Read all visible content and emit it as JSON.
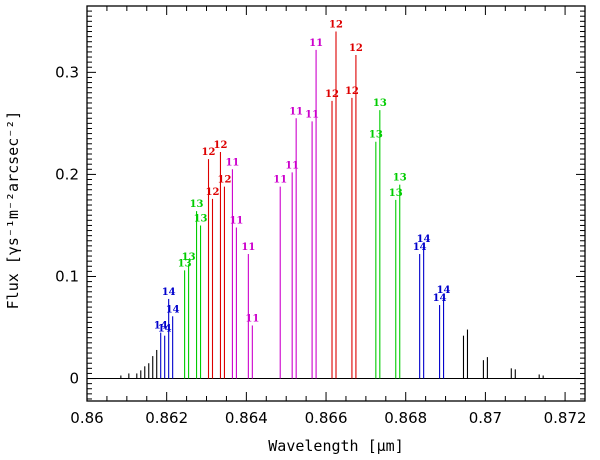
{
  "chart_data": {
    "type": "stem",
    "xlabel": "Wavelength [μm]",
    "ylabel": "Flux [γs⁻¹m⁻²arcsec⁻²]",
    "xlim": [
      0.86,
      0.8725
    ],
    "ylim": [
      -0.022,
      0.365
    ],
    "xticks": [
      0.86,
      0.862,
      0.864,
      0.866,
      0.868,
      0.87,
      0.872
    ],
    "xtick_labels": [
      "0.86",
      "0.862",
      "0.864",
      "0.866",
      "0.868",
      "0.87",
      "0.872"
    ],
    "yticks": [
      0,
      0.1,
      0.2,
      0.3
    ],
    "ytick_labels": [
      "0",
      "0.1",
      "0.2",
      "0.3"
    ],
    "colors": {
      "black": "#000000",
      "blue": "#0000cc",
      "green": "#00cc00",
      "red": "#dd0000",
      "magenta": "#cc00cc"
    },
    "series": [
      {
        "color": "black",
        "lines": [
          {
            "x": 0.86085,
            "y": 0.003
          },
          {
            "x": 0.86105,
            "y": 0.005
          },
          {
            "x": 0.86125,
            "y": 0.005
          },
          {
            "x": 0.86135,
            "y": 0.008
          },
          {
            "x": 0.86145,
            "y": 0.012
          },
          {
            "x": 0.86155,
            "y": 0.015
          },
          {
            "x": 0.86165,
            "y": 0.022
          },
          {
            "x": 0.86175,
            "y": 0.028
          },
          {
            "x": 0.86945,
            "y": 0.042
          },
          {
            "x": 0.86955,
            "y": 0.048
          },
          {
            "x": 0.86995,
            "y": 0.018
          },
          {
            "x": 0.87005,
            "y": 0.021
          },
          {
            "x": 0.87065,
            "y": 0.01
          },
          {
            "x": 0.87075,
            "y": 0.009
          },
          {
            "x": 0.87135,
            "y": 0.004
          },
          {
            "x": 0.87145,
            "y": 0.003
          }
        ]
      },
      {
        "color": "blue",
        "lines": [
          {
            "x": 0.86185,
            "y": 0.045,
            "label": "14"
          },
          {
            "x": 0.86195,
            "y": 0.042,
            "label": "14"
          },
          {
            "x": 0.86205,
            "y": 0.078,
            "label": "14"
          },
          {
            "x": 0.86215,
            "y": 0.061,
            "label": "14"
          },
          {
            "x": 0.86835,
            "y": 0.122,
            "label": "14"
          },
          {
            "x": 0.86845,
            "y": 0.13,
            "label": "14"
          },
          {
            "x": 0.86885,
            "y": 0.072,
            "label": "14"
          },
          {
            "x": 0.86895,
            "y": 0.08,
            "label": "14"
          }
        ]
      },
      {
        "color": "green",
        "lines": [
          {
            "x": 0.86245,
            "y": 0.106,
            "label": "13"
          },
          {
            "x": 0.86255,
            "y": 0.112,
            "label": "13"
          },
          {
            "x": 0.86275,
            "y": 0.164,
            "label": "13"
          },
          {
            "x": 0.86285,
            "y": 0.15,
            "label": "13"
          },
          {
            "x": 0.86725,
            "y": 0.232,
            "label": "13"
          },
          {
            "x": 0.86735,
            "y": 0.263,
            "label": "13"
          },
          {
            "x": 0.86775,
            "y": 0.175,
            "label": "13"
          },
          {
            "x": 0.86785,
            "y": 0.19,
            "label": "13"
          }
        ]
      },
      {
        "color": "red",
        "lines": [
          {
            "x": 0.86305,
            "y": 0.215,
            "label": "12"
          },
          {
            "x": 0.86315,
            "y": 0.176,
            "label": "12"
          },
          {
            "x": 0.86335,
            "y": 0.222,
            "label": "12"
          },
          {
            "x": 0.86345,
            "y": 0.188,
            "label": "12"
          },
          {
            "x": 0.86615,
            "y": 0.272,
            "label": "12"
          },
          {
            "x": 0.86625,
            "y": 0.34,
            "label": "12"
          },
          {
            "x": 0.86665,
            "y": 0.275,
            "label": "12"
          },
          {
            "x": 0.86675,
            "y": 0.317,
            "label": "12"
          }
        ]
      },
      {
        "color": "magenta",
        "lines": [
          {
            "x": 0.86365,
            "y": 0.205,
            "label": "11"
          },
          {
            "x": 0.86375,
            "y": 0.148,
            "label": "11"
          },
          {
            "x": 0.86405,
            "y": 0.122,
            "label": "11"
          },
          {
            "x": 0.86415,
            "y": 0.052,
            "label": "11"
          },
          {
            "x": 0.86485,
            "y": 0.188,
            "label": "11"
          },
          {
            "x": 0.86515,
            "y": 0.202,
            "label": "11"
          },
          {
            "x": 0.86525,
            "y": 0.255,
            "label": "11"
          },
          {
            "x": 0.86565,
            "y": 0.252,
            "label": "11"
          },
          {
            "x": 0.86575,
            "y": 0.322,
            "label": "11"
          }
        ]
      }
    ]
  }
}
